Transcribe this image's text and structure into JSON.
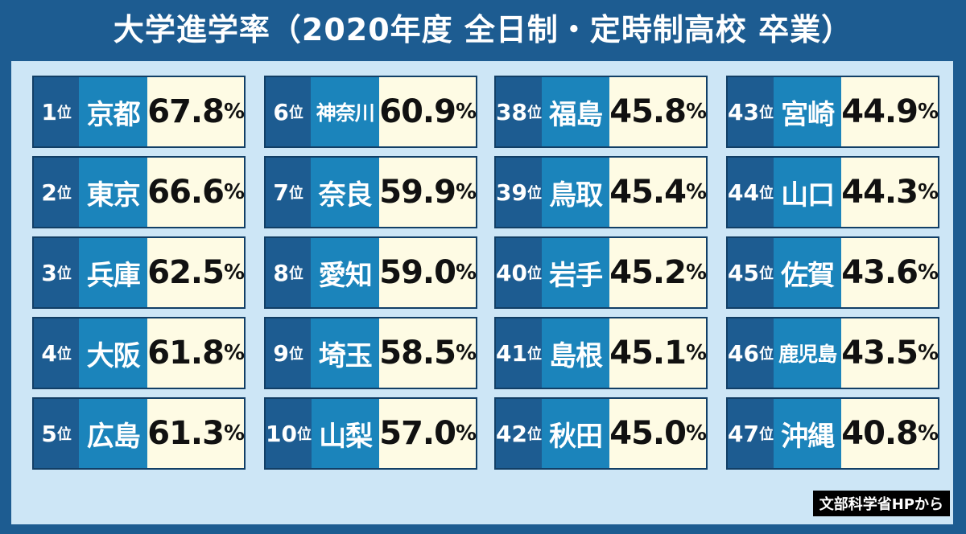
{
  "title": "大学進学率（2020年度 全日制・定時制高校 卒業）",
  "source": "文部科学省HPから",
  "columns": [
    [
      {
        "rank": "1位",
        "name": "京都",
        "rate": "67.8%"
      },
      {
        "rank": "2位",
        "name": "東京",
        "rate": "66.6%"
      },
      {
        "rank": "3位",
        "name": "兵庫",
        "rate": "62.5%"
      },
      {
        "rank": "4位",
        "name": "大阪",
        "rate": "61.8%"
      },
      {
        "rank": "5位",
        "name": "広島",
        "rate": "61.3%"
      }
    ],
    [
      {
        "rank": "6位",
        "name": "神奈川",
        "rate": "60.9%"
      },
      {
        "rank": "7位",
        "name": "奈良",
        "rate": "59.9%"
      },
      {
        "rank": "8位",
        "name": "愛知",
        "rate": "59.0%"
      },
      {
        "rank": "9位",
        "name": "埼玉",
        "rate": "58.5%"
      },
      {
        "rank": "10位",
        "name": "山梨",
        "rate": "57.0%"
      }
    ],
    [
      {
        "rank": "38位",
        "name": "福島",
        "rate": "45.8%"
      },
      {
        "rank": "39位",
        "name": "鳥取",
        "rate": "45.4%"
      },
      {
        "rank": "40位",
        "name": "岩手",
        "rate": "45.2%"
      },
      {
        "rank": "41位",
        "name": "島根",
        "rate": "45.1%"
      },
      {
        "rank": "42位",
        "name": "秋田",
        "rate": "45.0%"
      }
    ],
    [
      {
        "rank": "43位",
        "name": "宮崎",
        "rate": "44.9%"
      },
      {
        "rank": "44位",
        "name": "山口",
        "rate": "44.3%"
      },
      {
        "rank": "45位",
        "name": "佐賀",
        "rate": "43.6%"
      },
      {
        "rank": "46位",
        "name": "鹿児島",
        "rate": "43.5%"
      },
      {
        "rank": "47位",
        "name": "沖縄",
        "rate": "40.8%"
      }
    ]
  ]
}
